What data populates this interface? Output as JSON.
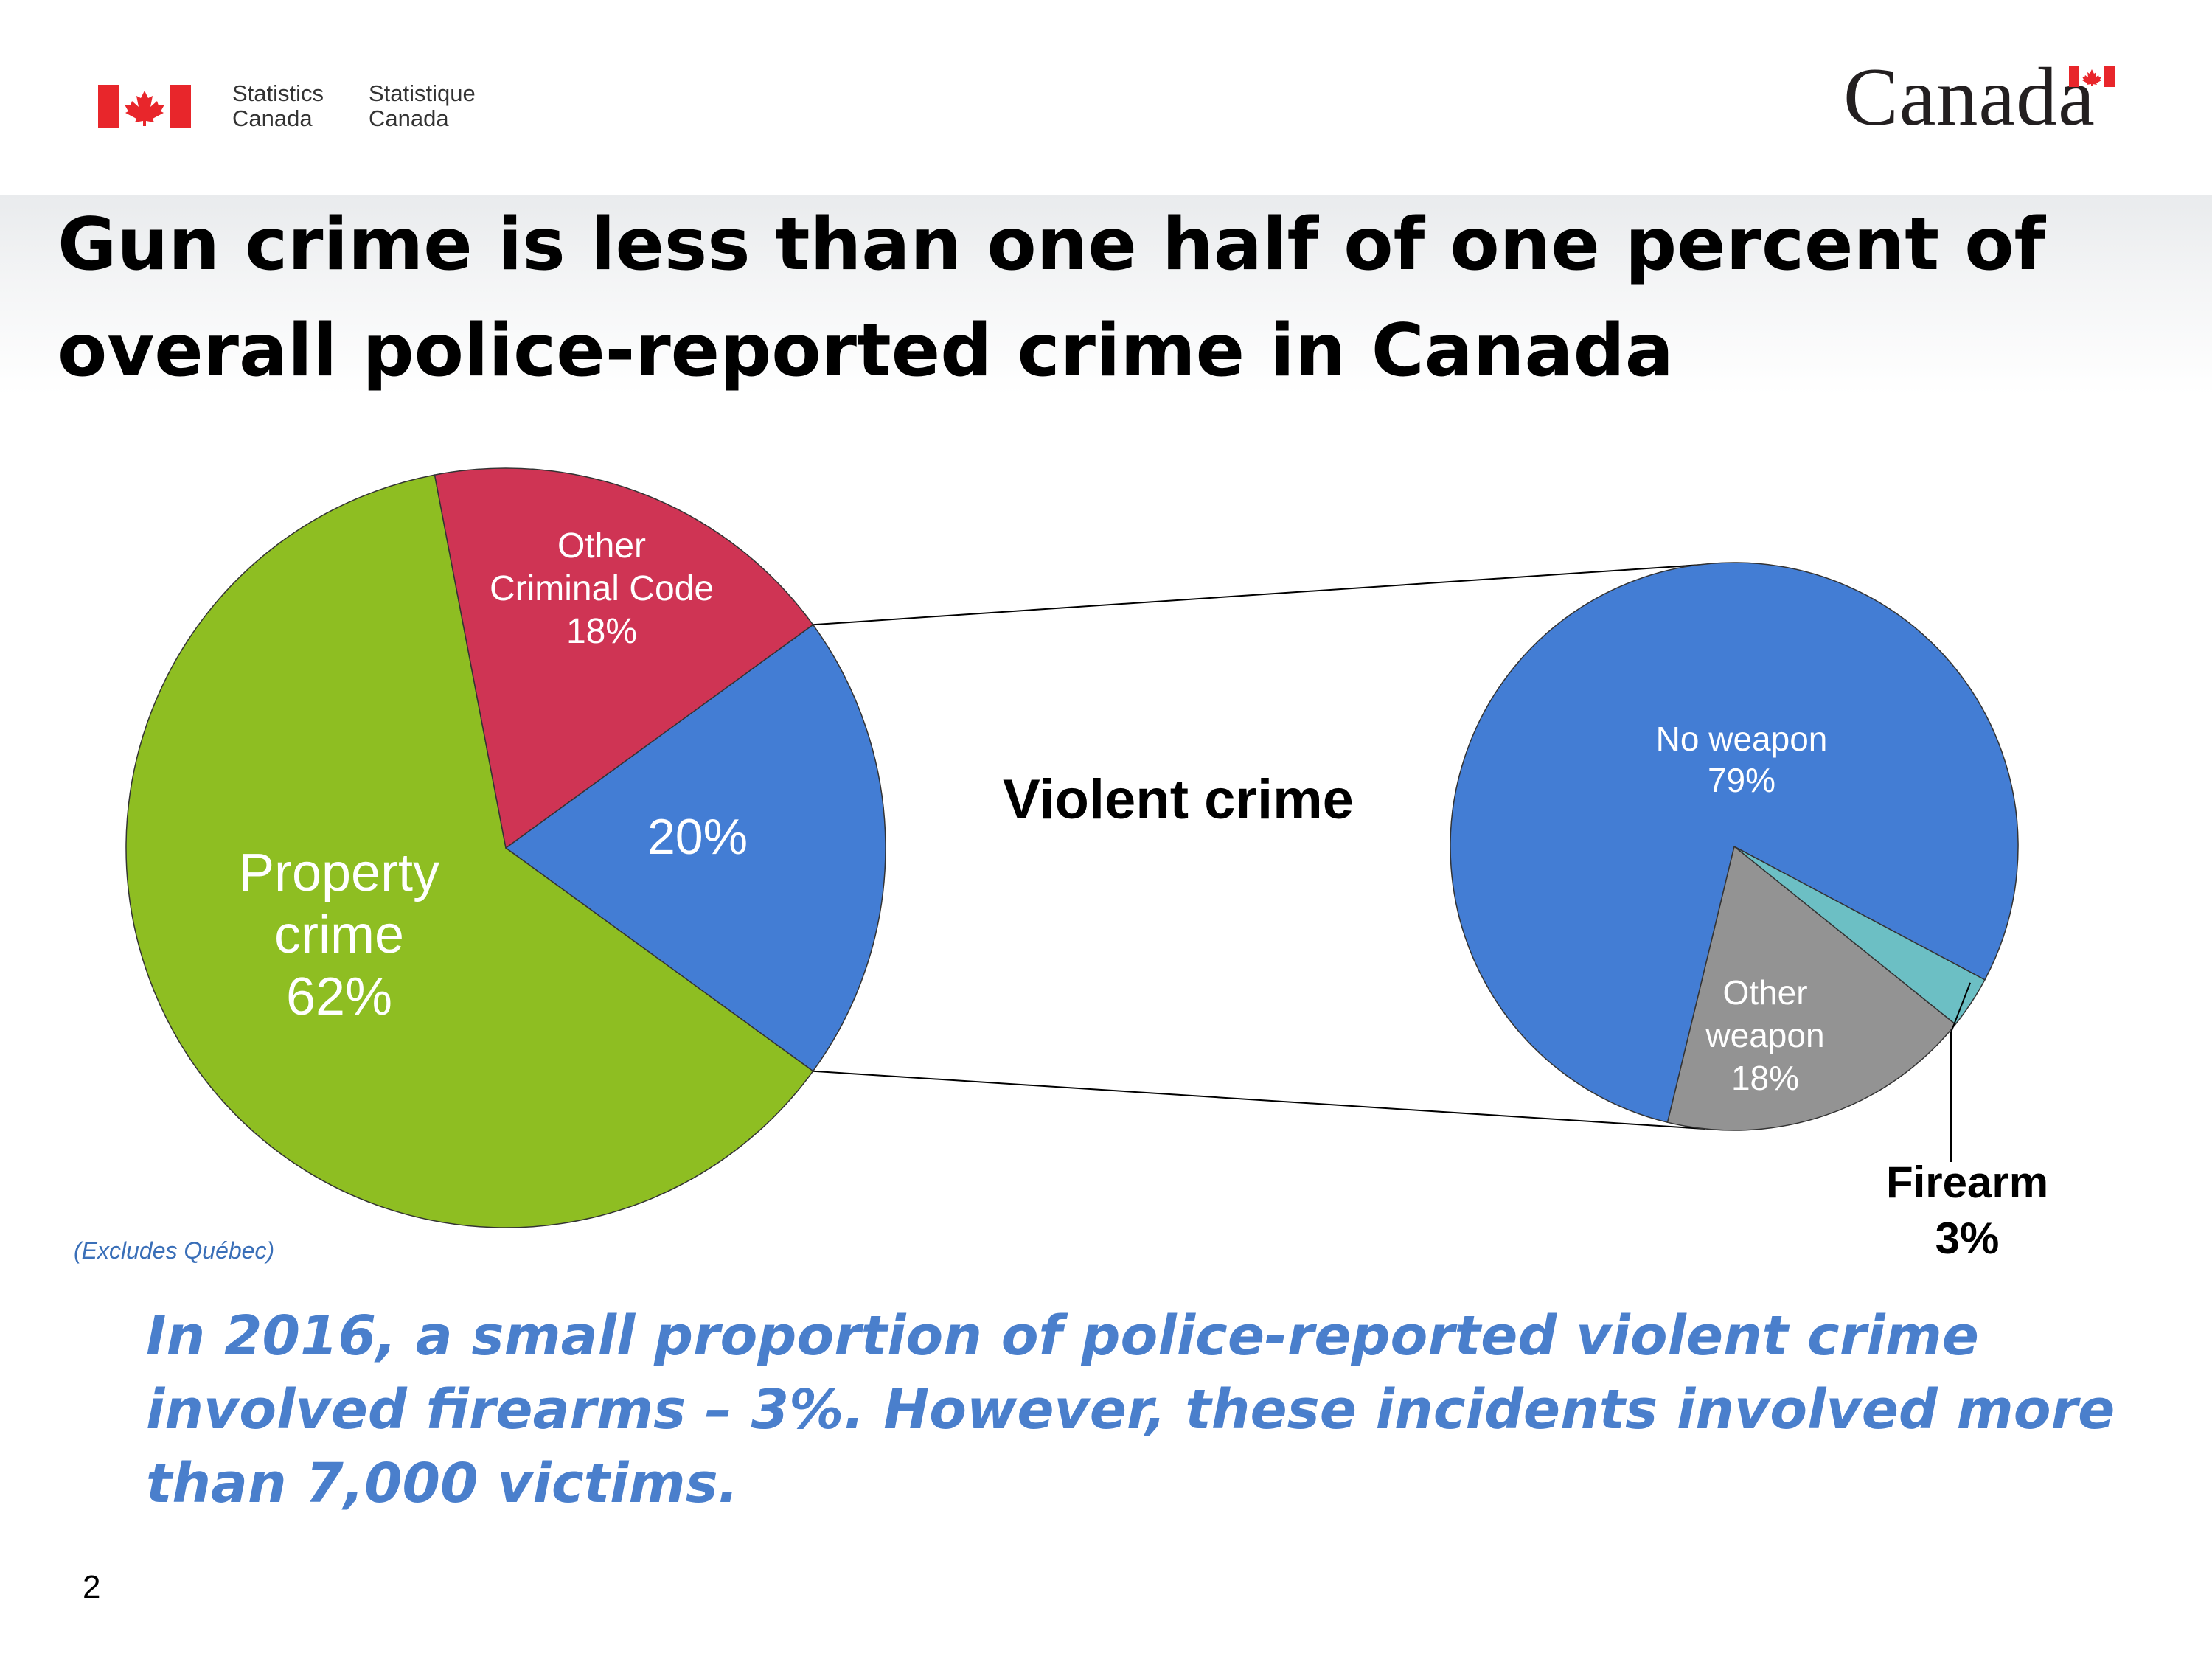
{
  "header": {
    "agency_en_line1": "Statistics",
    "agency_en_line2": "Canada",
    "agency_fr_line1": "Statistique",
    "agency_fr_line2": "Canada",
    "wordmark": "Canada",
    "flag_red": "#e8262b"
  },
  "slide": {
    "title": "Gun crime is less than one half of one percent of overall police-reported crime in Canada",
    "footnote": "(Excludes Québec)",
    "summary": "In 2016, a small proportion of police-reported violent crime involved firearms – 3%. However, these incidents involved more than 7,000 victims.",
    "page_number": "2"
  },
  "chart_data": [
    {
      "type": "pie",
      "title": "",
      "slices": [
        {
          "label": "Property crime",
          "value": 62,
          "display": "62%",
          "color": "#8ebe22"
        },
        {
          "label": "Other Criminal Code",
          "value": 18,
          "display": "18%",
          "color": "#cf3454"
        },
        {
          "label": "",
          "value": 20,
          "display": "20%",
          "color": "#437dd4"
        }
      ]
    },
    {
      "type": "pie",
      "title": "Violent crime",
      "slices": [
        {
          "label": "No weapon",
          "value": 79,
          "display": "79%",
          "color": "#437dd4"
        },
        {
          "label": "Firearm",
          "value": 3,
          "display": "3%",
          "color": "#6cbfc4"
        },
        {
          "label": "Other weapon",
          "value": 18,
          "display": "18%",
          "color": "#939393"
        }
      ]
    }
  ]
}
